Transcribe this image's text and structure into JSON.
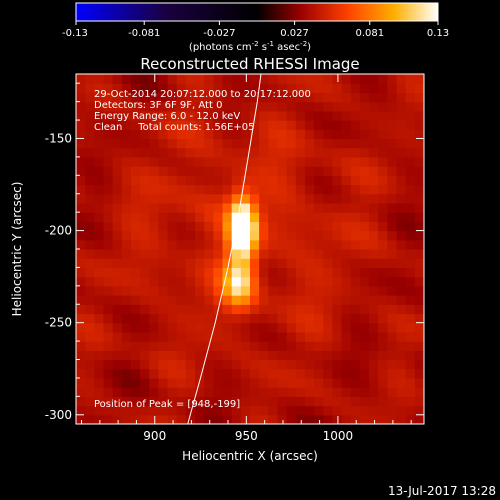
{
  "colorbar": {
    "ticks": [
      "-0.13",
      "-0.081",
      "-0.027",
      "0.027",
      "0.081",
      "0.13"
    ],
    "unit_main": "(photons cm",
    "unit_exp1": "-2",
    "unit_mid1": " s",
    "unit_exp2": "-1",
    "unit_mid2": " asec",
    "unit_exp3": "-2",
    "unit_end": ")"
  },
  "chart_data": {
    "type": "heatmap",
    "title": "Reconstructed RHESSI Image",
    "xlabel": "Heliocentric X (arcsec)",
    "ylabel": "Heliocentric Y (arcsec)",
    "xlim": [
      857,
      1047
    ],
    "ylim": [
      -305,
      -115
    ],
    "x_ticks": [
      900,
      950,
      1000
    ],
    "y_ticks": [
      -150,
      -200,
      -250,
      -300
    ],
    "color_range": [
      -0.13,
      0.13
    ],
    "colormap": "hot-cold (blue-black-red-yellow-white)",
    "annotations": [
      "29-Oct-2014 20:07:12.000 to 20:17:12.000",
      "Detectors: 3F 6F 9F, Att 0",
      "Energy Range: 6.0 - 12.0 keV",
      "Clean     Total counts: 1.56E+05"
    ],
    "peak_label": "Position of Peak = [948,-199]",
    "peak": [
      948,
      -199
    ],
    "limb_curve": [
      [
        918,
        -305
      ],
      [
        925,
        -280
      ],
      [
        933,
        -250
      ],
      [
        940,
        -220
      ],
      [
        946,
        -190
      ],
      [
        951,
        -160
      ],
      [
        956,
        -130
      ],
      [
        958,
        -115
      ]
    ],
    "sources": [
      {
        "x": 948,
        "y": -199,
        "peak": 0.13,
        "sx": 5,
        "sy": 11
      },
      {
        "x": 946,
        "y": -228,
        "peak": 0.07,
        "sx": 6,
        "sy": 9
      }
    ]
  },
  "footer": {
    "date": "13-Jul-2017 13:28"
  }
}
